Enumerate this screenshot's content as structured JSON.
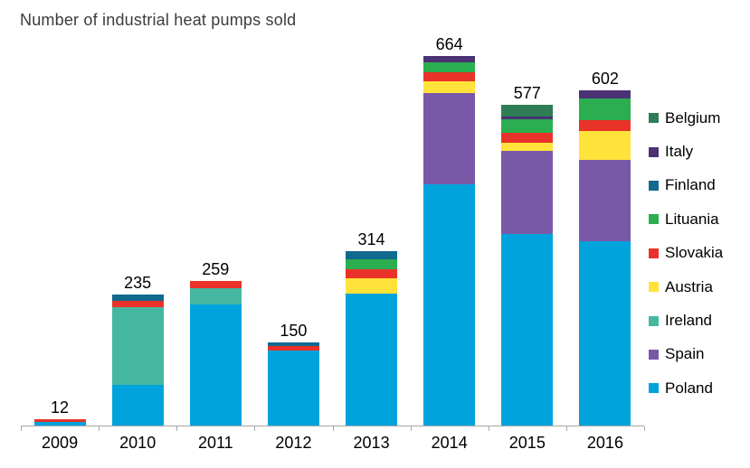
{
  "chart_data": {
    "type": "bar",
    "stacked": true,
    "title": "Number of industrial heat pumps sold",
    "categories": [
      "2009",
      "2010",
      "2011",
      "2012",
      "2013",
      "2014",
      "2015",
      "2016"
    ],
    "totals": [
      12,
      235,
      259,
      150,
      314,
      664,
      577,
      602
    ],
    "series": [
      {
        "name": "Poland",
        "color": "#00a3dc",
        "values": [
          6,
          73,
          217,
          135,
          237,
          433,
          344,
          332
        ]
      },
      {
        "name": "Spain",
        "color": "#7a58a8",
        "values": [
          0,
          0,
          0,
          0,
          0,
          164,
          149,
          146
        ]
      },
      {
        "name": "Ireland",
        "color": "#46b8a1",
        "values": [
          0,
          139,
          29,
          0,
          0,
          0,
          0,
          0
        ]
      },
      {
        "name": "Austria",
        "color": "#ffe23a",
        "values": [
          0,
          0,
          0,
          0,
          28,
          22,
          15,
          51
        ]
      },
      {
        "name": "Slovakia",
        "color": "#e93229",
        "values": [
          6,
          12,
          13,
          8,
          16,
          16,
          18,
          20
        ]
      },
      {
        "name": "Lituania",
        "color": "#2bae4f",
        "values": [
          0,
          0,
          0,
          0,
          18,
          18,
          24,
          38
        ]
      },
      {
        "name": "Finland",
        "color": "#11698e",
        "values": [
          0,
          11,
          0,
          7,
          15,
          0,
          0,
          0
        ]
      },
      {
        "name": "Italy",
        "color": "#4a3275",
        "values": [
          0,
          0,
          0,
          0,
          0,
          11,
          5,
          15
        ]
      },
      {
        "name": "Belgium",
        "color": "#2e7d56",
        "values": [
          0,
          0,
          0,
          0,
          0,
          0,
          22,
          0
        ]
      }
    ],
    "legend": [
      "Belgium",
      "Italy",
      "Finland",
      "Lituania",
      "Slovakia",
      "Austria",
      "Ireland",
      "Spain",
      "Poland"
    ],
    "legend_position": "right",
    "xlabel": "",
    "ylabel": "",
    "ylim": [
      0,
      680
    ],
    "grid": false,
    "y_axis_visible": false,
    "axis_color": "#a6a6a6"
  }
}
